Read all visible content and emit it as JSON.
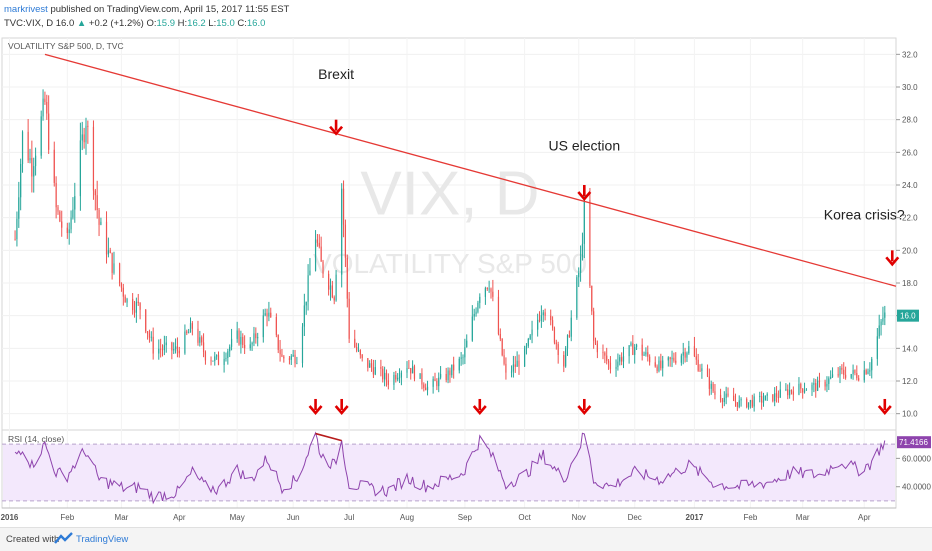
{
  "header": {
    "author": "markrivest",
    "published": "published on TradingView.com, April 15, 2017 11:55 EST",
    "symbol": "TVC:VIX, D",
    "last": "16.0",
    "change": "+0.2 (+1.2%)",
    "o_label": "O:",
    "o": "15.9",
    "h_label": "H:",
    "h": "16.2",
    "l_label": "L:",
    "l": "15.0",
    "c_label": "C:",
    "c": "16.0"
  },
  "footer": {
    "created_with": "Created with",
    "brand": "TradingView"
  },
  "chart_data": {
    "type": "candlestick",
    "title": "VOLATILITY S&P 500, D, TVC",
    "watermark": [
      "VIX, D",
      "VOLATILITY S&P 500"
    ],
    "x_range": [
      "2015-12-28",
      "2017-04-20"
    ],
    "y_range": [
      9.0,
      33.0
    ],
    "y_ticks": [
      "10.0",
      "12.0",
      "14.0",
      "16.0",
      "18.0",
      "20.0",
      "22.0",
      "24.0",
      "26.0",
      "28.0",
      "30.0",
      "32.0"
    ],
    "last_price_label": "16.0",
    "x_ticks": [
      {
        "label": "2016",
        "date": "2016-01-01"
      },
      {
        "label": "Feb",
        "date": "2016-02-01"
      },
      {
        "label": "Mar",
        "date": "2016-03-01"
      },
      {
        "label": "Apr",
        "date": "2016-04-01"
      },
      {
        "label": "May",
        "date": "2016-05-02"
      },
      {
        "label": "Jun",
        "date": "2016-06-01"
      },
      {
        "label": "Jul",
        "date": "2016-07-01"
      },
      {
        "label": "Aug",
        "date": "2016-08-01"
      },
      {
        "label": "Sep",
        "date": "2016-09-01"
      },
      {
        "label": "Oct",
        "date": "2016-10-03"
      },
      {
        "label": "Nov",
        "date": "2016-11-01"
      },
      {
        "label": "Dec",
        "date": "2016-12-01"
      },
      {
        "label": "2017",
        "date": "2017-01-02"
      },
      {
        "label": "Feb",
        "date": "2017-02-01"
      },
      {
        "label": "Mar",
        "date": "2017-03-01"
      },
      {
        "label": "Apr",
        "date": "2017-04-03"
      }
    ],
    "trendline": [
      {
        "date": "2016-01-20",
        "value": 32.0
      },
      {
        "date": "2017-04-20",
        "value": 17.8
      }
    ],
    "close_series": [
      {
        "date": "2016-01-04",
        "value": 20.7
      },
      {
        "date": "2016-01-08",
        "value": 27.0
      },
      {
        "date": "2016-01-13",
        "value": 25.2
      },
      {
        "date": "2016-01-20",
        "value": 29.0
      },
      {
        "date": "2016-01-26",
        "value": 22.5
      },
      {
        "date": "2016-02-01",
        "value": 20.5
      },
      {
        "date": "2016-02-08",
        "value": 26.0
      },
      {
        "date": "2016-02-11",
        "value": 28.1
      },
      {
        "date": "2016-02-18",
        "value": 21.6
      },
      {
        "date": "2016-02-25",
        "value": 19.1
      },
      {
        "date": "2016-03-04",
        "value": 16.9
      },
      {
        "date": "2016-03-11",
        "value": 16.5
      },
      {
        "date": "2016-03-18",
        "value": 14.0
      },
      {
        "date": "2016-03-31",
        "value": 13.9
      },
      {
        "date": "2016-04-08",
        "value": 15.3
      },
      {
        "date": "2016-04-15",
        "value": 13.6
      },
      {
        "date": "2016-04-22",
        "value": 13.2
      },
      {
        "date": "2016-05-02",
        "value": 14.7
      },
      {
        "date": "2016-05-09",
        "value": 14.0
      },
      {
        "date": "2016-05-18",
        "value": 16.3
      },
      {
        "date": "2016-05-26",
        "value": 13.4
      },
      {
        "date": "2016-06-03",
        "value": 13.5
      },
      {
        "date": "2016-06-13",
        "value": 20.9
      },
      {
        "date": "2016-06-16",
        "value": 19.1
      },
      {
        "date": "2016-06-23",
        "value": 17.3
      },
      {
        "date": "2016-06-27",
        "value": 23.9
      },
      {
        "date": "2016-07-01",
        "value": 14.8
      },
      {
        "date": "2016-07-08",
        "value": 13.2
      },
      {
        "date": "2016-07-15",
        "value": 12.7
      },
      {
        "date": "2016-07-22",
        "value": 12.0
      },
      {
        "date": "2016-08-01",
        "value": 13.0
      },
      {
        "date": "2016-08-12",
        "value": 11.6
      },
      {
        "date": "2016-08-22",
        "value": 12.3
      },
      {
        "date": "2016-08-31",
        "value": 13.4
      },
      {
        "date": "2016-09-09",
        "value": 17.5
      },
      {
        "date": "2016-09-14",
        "value": 18.1
      },
      {
        "date": "2016-09-23",
        "value": 12.3
      },
      {
        "date": "2016-10-03",
        "value": 13.6
      },
      {
        "date": "2016-10-13",
        "value": 16.7
      },
      {
        "date": "2016-10-24",
        "value": 13.0
      },
      {
        "date": "2016-11-02",
        "value": 19.3
      },
      {
        "date": "2016-11-04",
        "value": 22.5
      },
      {
        "date": "2016-11-09",
        "value": 14.4
      },
      {
        "date": "2016-11-18",
        "value": 12.9
      },
      {
        "date": "2016-12-01",
        "value": 14.1
      },
      {
        "date": "2016-12-15",
        "value": 12.8
      },
      {
        "date": "2016-12-30",
        "value": 14.0
      },
      {
        "date": "2017-01-13",
        "value": 11.2
      },
      {
        "date": "2017-01-27",
        "value": 10.6
      },
      {
        "date": "2017-02-10",
        "value": 10.9
      },
      {
        "date": "2017-02-24",
        "value": 11.5
      },
      {
        "date": "2017-03-10",
        "value": 11.7
      },
      {
        "date": "2017-03-21",
        "value": 12.5
      },
      {
        "date": "2017-03-31",
        "value": 12.4
      },
      {
        "date": "2017-04-06",
        "value": 12.9
      },
      {
        "date": "2017-04-11",
        "value": 15.1
      },
      {
        "date": "2017-04-13",
        "value": 15.9
      },
      {
        "date": "2017-04-14",
        "value": 16.0
      }
    ],
    "annotations": [
      {
        "text": "Brexit",
        "date": "2016-06-24",
        "value": 30.5
      },
      {
        "text": "US election",
        "date": "2016-11-04",
        "value": 26.1
      },
      {
        "text": "Korea crisis?",
        "date": "2017-04-03",
        "value": 21.9
      }
    ],
    "price_arrows": [
      {
        "date": "2016-06-24",
        "value": 28.0
      },
      {
        "date": "2016-11-04",
        "value": 24.0
      },
      {
        "date": "2017-04-18",
        "value": 20.0
      }
    ],
    "rsi": {
      "title": "RSI (14, close)",
      "y_range": [
        25,
        80
      ],
      "y_ticks": [
        "40.0000",
        "60.0000"
      ],
      "bands": [
        30,
        70
      ],
      "last_label": "71.4166",
      "arrows": [
        "2016-06-13",
        "2016-06-27",
        "2016-09-09",
        "2016-11-04",
        "2017-04-14"
      ],
      "divergence_line": [
        {
          "date": "2016-06-13",
          "value": 77.5
        },
        {
          "date": "2016-06-27",
          "value": 72.5
        }
      ],
      "series": [
        {
          "date": "2016-01-04",
          "value": 62
        },
        {
          "date": "2016-01-08",
          "value": 68
        },
        {
          "date": "2016-01-13",
          "value": 55
        },
        {
          "date": "2016-01-20",
          "value": 70
        },
        {
          "date": "2016-01-26",
          "value": 50
        },
        {
          "date": "2016-02-01",
          "value": 48
        },
        {
          "date": "2016-02-08",
          "value": 62
        },
        {
          "date": "2016-02-11",
          "value": 65
        },
        {
          "date": "2016-02-18",
          "value": 45
        },
        {
          "date": "2016-02-25",
          "value": 42
        },
        {
          "date": "2016-03-04",
          "value": 38
        },
        {
          "date": "2016-03-11",
          "value": 40
        },
        {
          "date": "2016-03-18",
          "value": 33
        },
        {
          "date": "2016-03-31",
          "value": 36
        },
        {
          "date": "2016-04-08",
          "value": 50
        },
        {
          "date": "2016-04-15",
          "value": 40
        },
        {
          "date": "2016-04-22",
          "value": 38
        },
        {
          "date": "2016-05-02",
          "value": 52
        },
        {
          "date": "2016-05-09",
          "value": 44
        },
        {
          "date": "2016-05-18",
          "value": 60
        },
        {
          "date": "2016-05-26",
          "value": 40
        },
        {
          "date": "2016-06-03",
          "value": 45
        },
        {
          "date": "2016-06-13",
          "value": 77
        },
        {
          "date": "2016-06-16",
          "value": 62
        },
        {
          "date": "2016-06-23",
          "value": 55
        },
        {
          "date": "2016-06-27",
          "value": 72
        },
        {
          "date": "2016-07-01",
          "value": 42
        },
        {
          "date": "2016-07-08",
          "value": 40
        },
        {
          "date": "2016-07-15",
          "value": 38
        },
        {
          "date": "2016-07-22",
          "value": 37
        },
        {
          "date": "2016-08-01",
          "value": 46
        },
        {
          "date": "2016-08-12",
          "value": 40
        },
        {
          "date": "2016-08-22",
          "value": 45
        },
        {
          "date": "2016-08-31",
          "value": 50
        },
        {
          "date": "2016-09-09",
          "value": 73
        },
        {
          "date": "2016-09-14",
          "value": 65
        },
        {
          "date": "2016-09-23",
          "value": 42
        },
        {
          "date": "2016-10-03",
          "value": 48
        },
        {
          "date": "2016-10-13",
          "value": 62
        },
        {
          "date": "2016-10-24",
          "value": 45
        },
        {
          "date": "2016-11-02",
          "value": 70
        },
        {
          "date": "2016-11-04",
          "value": 78
        },
        {
          "date": "2016-11-09",
          "value": 45
        },
        {
          "date": "2016-11-18",
          "value": 40
        },
        {
          "date": "2016-12-01",
          "value": 50
        },
        {
          "date": "2016-12-15",
          "value": 45
        },
        {
          "date": "2016-12-30",
          "value": 55
        },
        {
          "date": "2017-01-13",
          "value": 42
        },
        {
          "date": "2017-01-27",
          "value": 40
        },
        {
          "date": "2017-02-10",
          "value": 43
        },
        {
          "date": "2017-02-24",
          "value": 50
        },
        {
          "date": "2017-03-10",
          "value": 48
        },
        {
          "date": "2017-03-21",
          "value": 58
        },
        {
          "date": "2017-03-31",
          "value": 52
        },
        {
          "date": "2017-04-06",
          "value": 56
        },
        {
          "date": "2017-04-11",
          "value": 66
        },
        {
          "date": "2017-04-13",
          "value": 70
        },
        {
          "date": "2017-04-14",
          "value": 71.4
        }
      ]
    },
    "colors": {
      "up": "#26a69a",
      "down": "#ef5350",
      "trendline": "#e53935",
      "arrow": "#e00000",
      "rsi_line": "#8e44ad",
      "rsi_fill": "#f3e8fc"
    }
  }
}
